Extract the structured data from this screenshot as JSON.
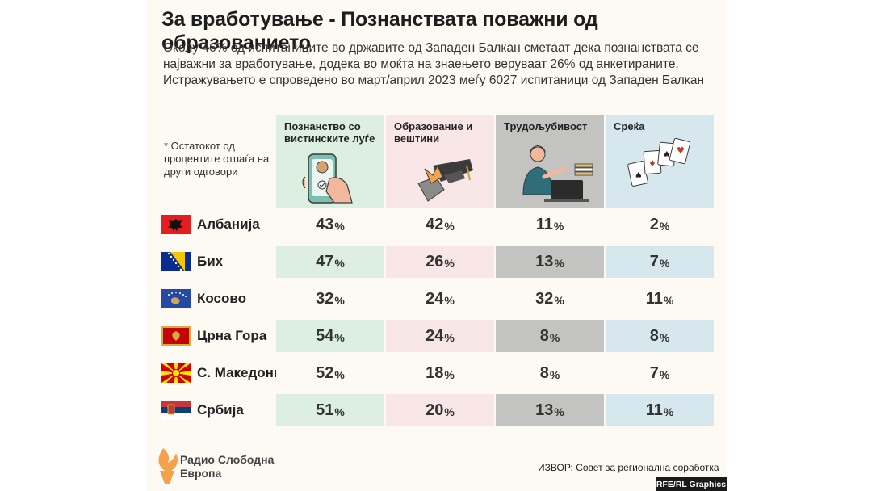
{
  "title": "За вработување - Познанствата поважни од образованието",
  "subtitle": [
    "Околу 46% од испитаниците во државите од Западен Балкан сметаат дека познанствата се",
    "најважни за вработување, додека во моќта на знаењето веруваат 26% од анкетираните.",
    "Истражувањето е спроведено во март/април 2023 меѓу 6027 испитаници од Западен Балкан"
  ],
  "note": "* Остатокот од процентите отпаѓа на други одговори",
  "percent_sign": "%",
  "colors": {
    "col1": "#dcefe1",
    "col2": "#f9e6e6",
    "col3": "#c3c3c1",
    "col4": "#d6e8ee",
    "light_row": "#fcfaf3",
    "logo_orange": "#f5a04a"
  },
  "chart_data": {
    "type": "table",
    "title": "За вработување - Познанствата поважни од образованието",
    "columns": [
      {
        "label": "Познанство со вистинските луѓе",
        "icon": "phone-hand-icon"
      },
      {
        "label": "Образование и вештини",
        "icon": "graduation-cap-icon"
      },
      {
        "label": "Трудољубивост",
        "icon": "worker-laptop-icon"
      },
      {
        "label": "Среќа",
        "icon": "playing-cards-icon"
      }
    ],
    "rows": [
      {
        "country": "Албанија",
        "flag": "albania-flag-icon",
        "values": [
          43,
          42,
          11,
          2
        ]
      },
      {
        "country": "Бих",
        "flag": "bosnia-flag-icon",
        "values": [
          47,
          26,
          13,
          7
        ]
      },
      {
        "country": "Косово",
        "flag": "kosovo-flag-icon",
        "values": [
          32,
          24,
          32,
          11
        ]
      },
      {
        "country": "Црна Гора",
        "flag": "montenegro-flag-icon",
        "values": [
          54,
          24,
          8,
          8
        ]
      },
      {
        "country": "С. Македонија",
        "flag": "north-macedonia-flag-icon",
        "values": [
          52,
          18,
          8,
          7
        ]
      },
      {
        "country": "Србија",
        "flag": "serbia-flag-icon",
        "values": [
          51,
          20,
          13,
          11
        ]
      }
    ],
    "unit": "%"
  },
  "logo": {
    "line1": "Радио Слободна",
    "line2": "Европа"
  },
  "source": "ИЗВОР: Совет за регионална соработка",
  "credit": "RFE/RL Graphics"
}
